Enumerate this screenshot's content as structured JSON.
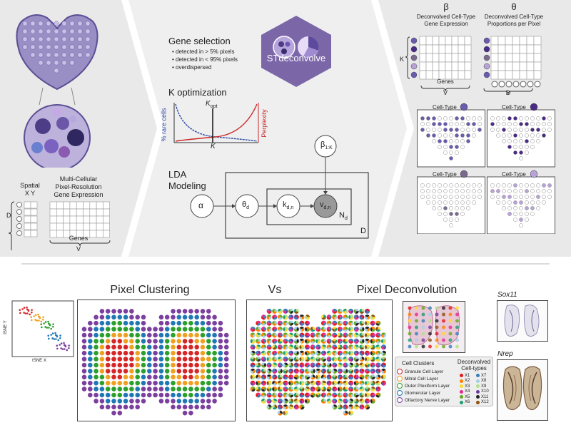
{
  "top": {
    "input": {
      "spatial_label": "Spatial",
      "xy_label": "X Y",
      "matrix_title_lines": [
        "Multi-Cellular",
        "Pixel-Resolution",
        "Gene Expression"
      ],
      "d_label": "D",
      "genes_label": "Genes",
      "v_label": "V"
    },
    "middle": {
      "gene_selection_title": "Gene selection",
      "gene_selection_bullets": [
        "• detected in > 5% pixels",
        "• detected in < 95% pixels",
        "• overdispersed"
      ],
      "logo_text": "STdeconvolve",
      "k_opt_title": "K optimization",
      "k_opt_kopt": "K",
      "k_opt_kopt_sub": "opt",
      "k_opt_ylabel_left": "% rare cells",
      "k_opt_ylabel_right": "Perplexity",
      "k_opt_xlabel": "K",
      "lda_title_lines": [
        "LDA",
        "Modeling"
      ],
      "node_alpha": "α",
      "node_theta": "θ",
      "node_theta_sub": "d",
      "node_k": "k",
      "node_k_sub": "d,n",
      "node_v": "v",
      "node_v_sub": "d,n",
      "node_beta": "β",
      "node_beta_sub": "1:K",
      "plate_nd": "N",
      "plate_nd_sub": "d",
      "plate_d": "D"
    },
    "output": {
      "beta_symbol": "β",
      "beta_title_lines": [
        "Deconvolved Cell-Type",
        "Gene Expression"
      ],
      "theta_symbol": "θ",
      "theta_title_lines": [
        "Deconvolved Cell-Type",
        "Proportions per Pixel"
      ],
      "k_label": "K",
      "genes_label": "Genes",
      "v_label": "V",
      "d_label": "D",
      "celltype_label": "Cell-Type",
      "celltype_colors": [
        "#6a5ab0",
        "#4a2a88",
        "#7a6a90",
        "#b8a2d8"
      ]
    }
  },
  "bottom": {
    "tsne_xlabel": "tSNE X",
    "tsne_ylabel": "tSNE Y",
    "clustering_title": "Pixel Clustering",
    "vs_label": "Vs",
    "deconvolution_title": "Pixel Deconvolution",
    "gene1": "Sox11",
    "gene2": "Nrep",
    "legend_clusters_title": "Cell Clusters",
    "legend_clusters": [
      {
        "label": "Granule Cell Layer",
        "color": "#d62728"
      },
      {
        "label": "Mitral Cell Layer",
        "color": "#f0a020"
      },
      {
        "label": "Outer Plexiform Layer",
        "color": "#2ca02c"
      },
      {
        "label": "Glomerular Layer",
        "color": "#1f77b4"
      },
      {
        "label": "Olfactory Nerve Layer",
        "color": "#7b3f9e"
      }
    ],
    "legend_types_title_lines": [
      "Deconvolved",
      "Cell-types"
    ],
    "legend_types": [
      {
        "label": "X1",
        "color": "#e31a1c"
      },
      {
        "label": "X2",
        "color": "#ff7f00"
      },
      {
        "label": "X3",
        "color": "#ffd92f"
      },
      {
        "label": "X4",
        "color": "#e7298a"
      },
      {
        "label": "X5",
        "color": "#66a61e"
      },
      {
        "label": "X6",
        "color": "#1b9e77"
      },
      {
        "label": "X7",
        "color": "#377eb8"
      },
      {
        "label": "X8",
        "color": "#a6cee3"
      },
      {
        "label": "X9",
        "color": "#b2df8a"
      },
      {
        "label": "X10",
        "color": "#6a3d9a"
      },
      {
        "label": "X11",
        "color": "#222222"
      },
      {
        "label": "X12",
        "color": "#8c510a"
      }
    ]
  }
}
